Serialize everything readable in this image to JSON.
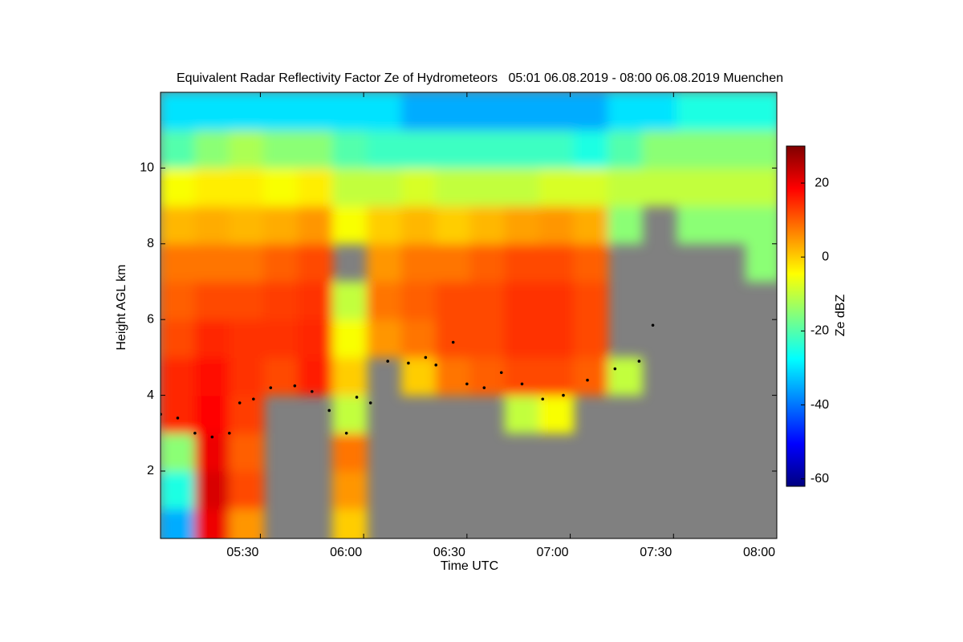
{
  "chart_data": {
    "type": "heatmap",
    "title": "Equivalent Radar Reflectivity Factor Ze of Hydrometeors   05:01 06.08.2019 - 08:00 06.08.2019 Muenchen",
    "x_label": "Time UTC",
    "y_label": "Height AGL km",
    "colorbar_label": "Ze dBZ",
    "colormap": "jet",
    "missing_color": "#808080",
    "clim": [
      -62,
      30
    ],
    "cticks": [
      -60,
      -40,
      -20,
      0,
      20
    ],
    "xlim": [
      301,
      480
    ],
    "xticks": [
      {
        "value": 330,
        "label": "05:30"
      },
      {
        "value": 360,
        "label": "06:00"
      },
      {
        "value": 390,
        "label": "06:30"
      },
      {
        "value": 420,
        "label": "07:00"
      },
      {
        "value": 450,
        "label": "07:30"
      },
      {
        "value": 480,
        "label": "08:00"
      }
    ],
    "ylim": [
      0.22,
      12
    ],
    "yticks": [
      2,
      4,
      6,
      8,
      10
    ],
    "x": [
      306,
      316,
      326,
      336,
      346,
      356,
      366,
      376,
      386,
      396,
      406,
      416,
      426,
      436,
      446,
      456,
      466,
      476
    ],
    "y": [
      0.5,
      1.5,
      2.5,
      3.5,
      4.5,
      5.5,
      6.5,
      7.5,
      8.5,
      9.5,
      10.5,
      11.5
    ],
    "z": [
      [
        -35,
        20,
        5,
        null,
        null,
        0,
        null,
        null,
        null,
        null,
        null,
        null,
        null,
        null,
        null,
        null,
        null,
        null
      ],
      [
        -25,
        22,
        12,
        null,
        null,
        5,
        null,
        null,
        null,
        null,
        null,
        null,
        null,
        null,
        null,
        null,
        null,
        null
      ],
      [
        -15,
        20,
        10,
        null,
        null,
        8,
        null,
        null,
        null,
        null,
        null,
        null,
        null,
        null,
        null,
        null,
        null,
        null
      ],
      [
        15,
        18,
        13,
        null,
        null,
        -10,
        null,
        null,
        null,
        null,
        -10,
        -5,
        null,
        null,
        null,
        null,
        null,
        null
      ],
      [
        15,
        17,
        14,
        12,
        16,
        0,
        null,
        0,
        8,
        10,
        12,
        12,
        10,
        -10,
        null,
        null,
        null,
        null
      ],
      [
        12,
        15,
        14,
        14,
        15,
        -5,
        5,
        8,
        12,
        12,
        14,
        14,
        12,
        null,
        null,
        null,
        null,
        null
      ],
      [
        10,
        12,
        12,
        13,
        14,
        -10,
        8,
        10,
        12,
        12,
        14,
        14,
        12,
        null,
        null,
        null,
        null,
        null
      ],
      [
        8,
        8,
        8,
        10,
        12,
        null,
        5,
        8,
        8,
        10,
        12,
        12,
        10,
        null,
        null,
        null,
        null,
        -15
      ],
      [
        2,
        3,
        2,
        3,
        5,
        -5,
        0,
        2,
        0,
        2,
        4,
        5,
        3,
        -15,
        null,
        -15,
        -15,
        -15
      ],
      [
        -5,
        -3,
        -3,
        -5,
        -3,
        -10,
        -10,
        -8,
        -10,
        -10,
        -10,
        -8,
        -8,
        -10,
        -10,
        -10,
        -10,
        -10
      ],
      [
        -20,
        -15,
        -12,
        -15,
        -15,
        -20,
        -22,
        -22,
        -22,
        -22,
        -22,
        -22,
        -25,
        -20,
        -15,
        -15,
        -15,
        -15
      ],
      [
        -30,
        -30,
        -30,
        -30,
        -30,
        -30,
        -30,
        -35,
        -35,
        -35,
        -35,
        -35,
        -35,
        -30,
        -30,
        -25,
        -25,
        -25
      ]
    ],
    "overlay": {
      "color": "#000000",
      "x": [
        301,
        306,
        311,
        316,
        321,
        324,
        328,
        333,
        340,
        345,
        350,
        355,
        358,
        362,
        367,
        373,
        378,
        381,
        386,
        390,
        395,
        400,
        406,
        412,
        418,
        425,
        433,
        440,
        444
      ],
      "y": [
        3.5,
        3.4,
        3.0,
        2.9,
        3.0,
        3.8,
        3.9,
        4.2,
        4.25,
        4.1,
        3.6,
        3.0,
        3.95,
        3.8,
        4.9,
        4.85,
        5.0,
        4.8,
        5.4,
        4.3,
        4.2,
        4.6,
        4.3,
        3.9,
        4.0,
        4.4,
        4.7,
        4.9,
        5.85
      ]
    }
  }
}
